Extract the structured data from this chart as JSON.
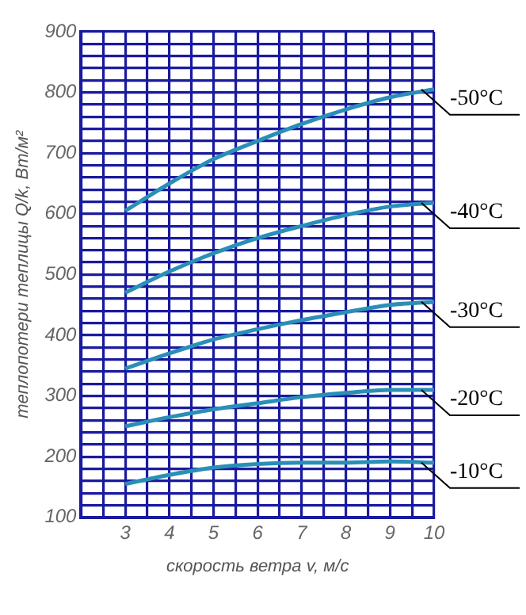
{
  "chart_data": {
    "type": "line",
    "xlabel": "скорость ветра v, м/с",
    "ylabel": "теплопотери теплицы Q/k, Вт/м²",
    "x": [
      3,
      4,
      5,
      6,
      7,
      8,
      9,
      10
    ],
    "series": [
      {
        "name": "-50°C",
        "color": "#2a8fb8",
        "values": [
          605,
          650,
          690,
          720,
          748,
          772,
          792,
          805
        ]
      },
      {
        "name": "-40°C",
        "color": "#2a8fb8",
        "values": [
          470,
          505,
          535,
          560,
          580,
          598,
          612,
          618
        ]
      },
      {
        "name": "-30°C",
        "color": "#2a8fb8",
        "values": [
          345,
          370,
          393,
          410,
          425,
          438,
          450,
          455
        ]
      },
      {
        "name": "-20°C",
        "color": "#2a8fb8",
        "values": [
          250,
          265,
          278,
          288,
          298,
          305,
          310,
          310
        ]
      },
      {
        "name": "-10°C",
        "color": "#2a8fb8",
        "values": [
          155,
          170,
          182,
          188,
          190,
          190,
          192,
          190
        ]
      }
    ],
    "xlim": [
      2,
      10
    ],
    "xticks": [
      {
        "value": 2,
        "label": null
      },
      {
        "value": 2.5,
        "label": null
      },
      3,
      {
        "value": 3.5,
        "label": null
      },
      4,
      {
        "value": 4.5,
        "label": null
      },
      5,
      {
        "value": 5.5,
        "label": null
      },
      6,
      {
        "value": 6.5,
        "label": null
      },
      7,
      {
        "value": 7.5,
        "label": null
      },
      8,
      {
        "value": 8.5,
        "label": null
      },
      9,
      {
        "value": 9.5,
        "label": null
      },
      10
    ],
    "ylim": [
      100,
      900
    ],
    "yticks": [
      100,
      {
        "value": 120,
        "label": null
      },
      {
        "value": 140,
        "label": null
      },
      {
        "value": 160,
        "label": null
      },
      {
        "value": 180,
        "label": null
      },
      200,
      {
        "value": 220,
        "label": null
      },
      {
        "value": 240,
        "label": null
      },
      {
        "value": 260,
        "label": null
      },
      {
        "value": 280,
        "label": null
      },
      300,
      {
        "value": 320,
        "label": null
      },
      {
        "value": 340,
        "label": null
      },
      {
        "value": 360,
        "label": null
      },
      {
        "value": 380,
        "label": null
      },
      400,
      {
        "value": 420,
        "label": null
      },
      {
        "value": 440,
        "label": null
      },
      {
        "value": 460,
        "label": null
      },
      {
        "value": 480,
        "label": null
      },
      500,
      {
        "value": 520,
        "label": null
      },
      {
        "value": 540,
        "label": null
      },
      {
        "value": 560,
        "label": null
      },
      {
        "value": 580,
        "label": null
      },
      600,
      {
        "value": 620,
        "label": null
      },
      {
        "value": 640,
        "label": null
      },
      {
        "value": 660,
        "label": null
      },
      {
        "value": 680,
        "label": null
      },
      700,
      {
        "value": 720,
        "label": null
      },
      {
        "value": 740,
        "label": null
      },
      {
        "value": 760,
        "label": null
      },
      {
        "value": 780,
        "label": null
      },
      800,
      {
        "value": 820,
        "label": null
      },
      {
        "value": 840,
        "label": null
      },
      {
        "value": 860,
        "label": null
      },
      {
        "value": 880,
        "label": null
      },
      900
    ],
    "grid": true,
    "legend": false,
    "marker": "none",
    "line_style": "solid"
  }
}
